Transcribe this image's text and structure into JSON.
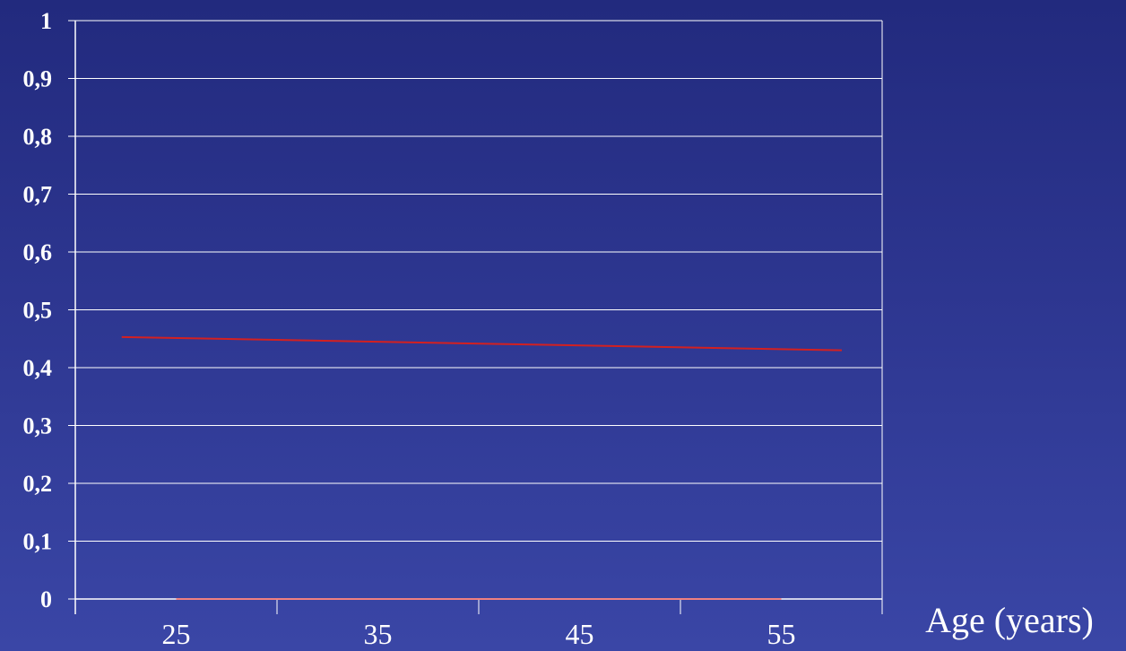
{
  "chart_data": {
    "type": "line",
    "title": "",
    "xlabel": "Age (years)",
    "ylabel": "",
    "x_ticks": [
      "25",
      "35",
      "45",
      "55"
    ],
    "y_ticks": [
      "0",
      "0,1",
      "0,2",
      "0,3",
      "0,4",
      "0,5",
      "0,6",
      "0,7",
      "0,8",
      "0,9",
      "1"
    ],
    "xlim": [
      20,
      60
    ],
    "ylim": [
      0,
      1
    ],
    "grid": true,
    "series": [
      {
        "color": "#d42020",
        "x": [
          22.3,
          58
        ],
        "y": [
          0.453,
          0.43
        ]
      },
      {
        "color": "#f08080",
        "x": [
          25,
          55
        ],
        "y": [
          0,
          0
        ]
      }
    ]
  },
  "colors": {
    "axis": "#ffffff",
    "grid": "#ffffff"
  }
}
